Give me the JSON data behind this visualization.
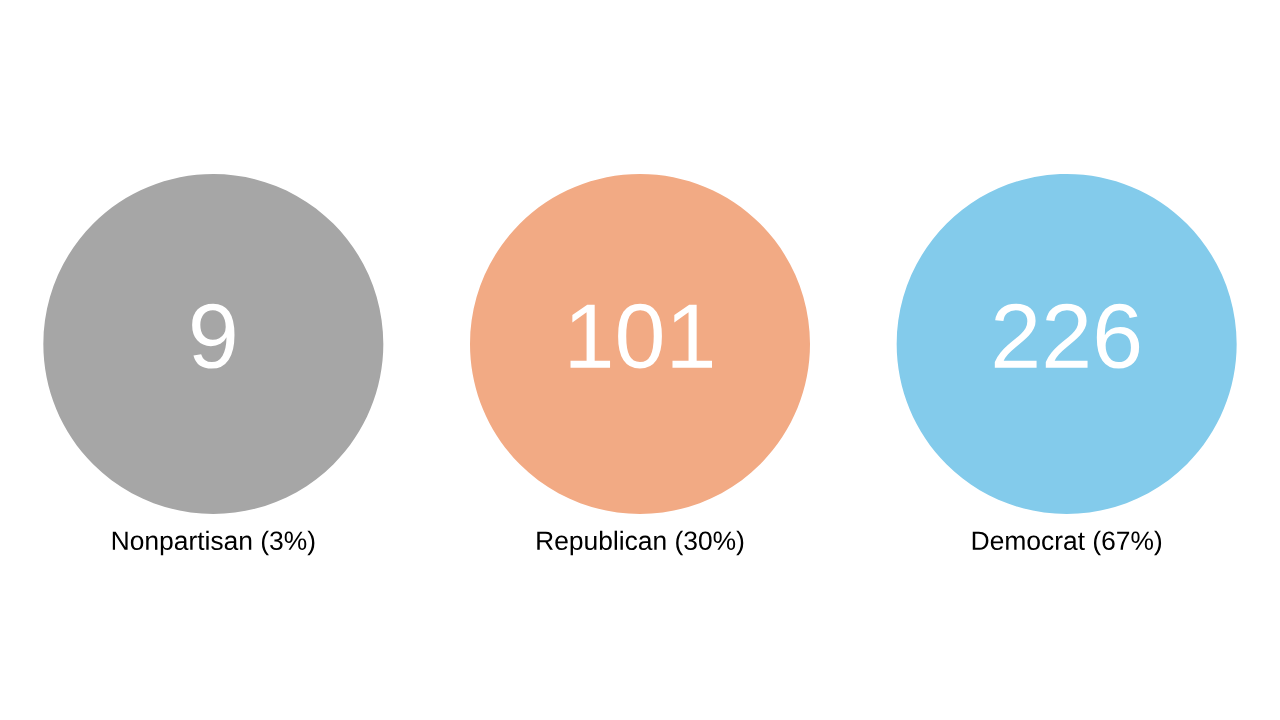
{
  "chart_data": {
    "type": "other",
    "categories": [
      "Nonpartisan (3%)",
      "Republican (30%)",
      "Democrat (67%)"
    ],
    "values": [
      9,
      101,
      226
    ],
    "colors": [
      "#a6a6a6",
      "#f2aa84",
      "#83cbeb"
    ],
    "data_labels": true
  }
}
